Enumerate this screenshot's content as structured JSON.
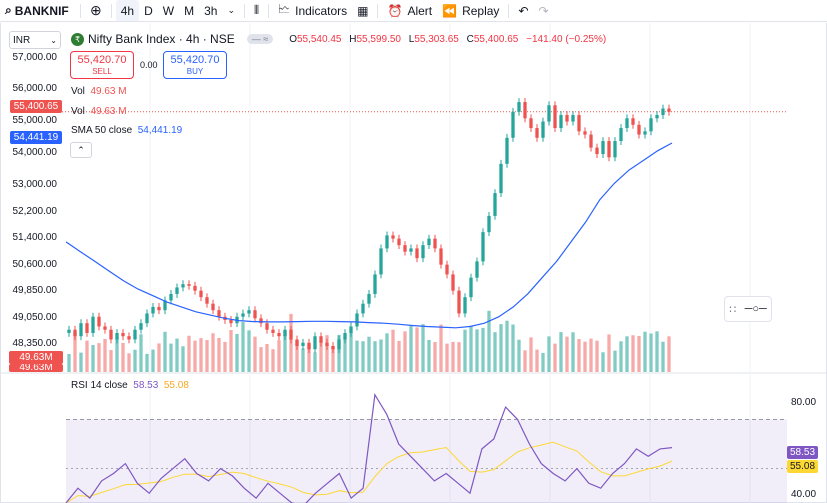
{
  "toolbar": {
    "symbol": "BANKNIF",
    "intervals": [
      "4h",
      "D",
      "W",
      "M",
      "3h"
    ],
    "indicators_label": "Indicators",
    "alert_label": "Alert",
    "replay_label": "Replay"
  },
  "legend": {
    "title": "Nifty Bank Index · 4h · NSE",
    "o_label": "O",
    "o": "55,540.45",
    "h_label": "H",
    "h": "55,599.50",
    "l_label": "L",
    "l": "55,303.65",
    "c_label": "C",
    "c": "55,400.65",
    "change": "−141.40 (−0.25%)"
  },
  "currency": "INR",
  "trade": {
    "sell_price": "55,420.70",
    "sell_label": "SELL",
    "spread": "0.00",
    "buy_price": "55,420.70",
    "buy_label": "BUY"
  },
  "indicators": {
    "vol1_label": "Vol",
    "vol1_value": "49.63 M",
    "vol2_label": "Vol",
    "vol2_value": "49.63 M",
    "sma_label": "SMA 50 close",
    "sma_value": "54,441.19",
    "rsi_label": "RSI 14 close",
    "rsi_value": "58.53",
    "rsi_ma": "55.08"
  },
  "price_axis": [
    "57,000.00",
    "56,000.00",
    "55,000.00",
    "54,000.00",
    "53,000.00",
    "52,200.00",
    "51,400.00",
    "50,600.00",
    "49,850.00",
    "49,050.00",
    "48,350.00"
  ],
  "price_tags": {
    "last": "55,400.65",
    "sma": "54,441.19",
    "vol": "49.63M",
    "vol2": "49.63M"
  },
  "rsi_axis": {
    "top": "80.00",
    "bottom": "40.00"
  },
  "colors": {
    "up": "#26a69a",
    "down": "#ef5350",
    "sma": "#2962ff",
    "rsi": "#7e57c2",
    "rsi_ma": "#fdd835"
  },
  "chart_data": {
    "type": "candlestick",
    "title": "Nifty Bank Index · 4h · NSE",
    "ylim": [
      47400,
      57300
    ],
    "close": [
      48700,
      48500,
      48900,
      48600,
      49100,
      48800,
      48700,
      48400,
      48600,
      48500,
      48400,
      48700,
      48900,
      49200,
      49400,
      49300,
      49600,
      49800,
      50000,
      50100,
      50050,
      49900,
      49700,
      49500,
      49300,
      49100,
      49000,
      48900,
      49100,
      49200,
      49300,
      49050,
      48900,
      48700,
      48600,
      48500,
      48700,
      48400,
      48200,
      48300,
      48100,
      48500,
      48300,
      48200,
      48100,
      48400,
      48600,
      48800,
      49200,
      49500,
      49800,
      50400,
      51200,
      51600,
      51500,
      51300,
      51100,
      51200,
      50900,
      51300,
      51500,
      51200,
      50700,
      50400,
      49900,
      49200,
      49700,
      50300,
      50800,
      51700,
      52200,
      52900,
      53800,
      54600,
      55400,
      55700,
      55200,
      54900,
      54600,
      55100,
      55600,
      54900,
      55300,
      55100,
      55300,
      54800,
      54700,
      54300,
      54100,
      54500,
      54000,
      54500,
      54900,
      55200,
      55000,
      54700,
      54800,
      55200,
      55300,
      55500,
      55400
    ],
    "sma_50": [
      51400,
      51100,
      50800,
      50500,
      50200,
      49950,
      49750,
      49550,
      49400,
      49250,
      49150,
      49050,
      48980,
      48950,
      48940,
      48940,
      48950,
      48960,
      48960,
      48950,
      48940,
      48920,
      48900,
      48870,
      48830,
      48800,
      48780,
      48760,
      48800,
      48900,
      49100,
      49400,
      49800,
      50300,
      50800,
      51400,
      52000,
      52700,
      53200,
      53600,
      53900,
      54200,
      54441
    ],
    "volume_m": [
      49.63
    ],
    "rsi_14": [
      36,
      42,
      38,
      45,
      48,
      52,
      44,
      40,
      46,
      50,
      54,
      48,
      45,
      50,
      47,
      42,
      38,
      44,
      40,
      36,
      35,
      40,
      44,
      48,
      38,
      42,
      80,
      72,
      60,
      55,
      50,
      45,
      48,
      44,
      40,
      58,
      62,
      75,
      70,
      60,
      52,
      48,
      45,
      50,
      44,
      42,
      48,
      52,
      58,
      55,
      58,
      58.53
    ],
    "rsi_ma_14": [
      55.08
    ]
  }
}
